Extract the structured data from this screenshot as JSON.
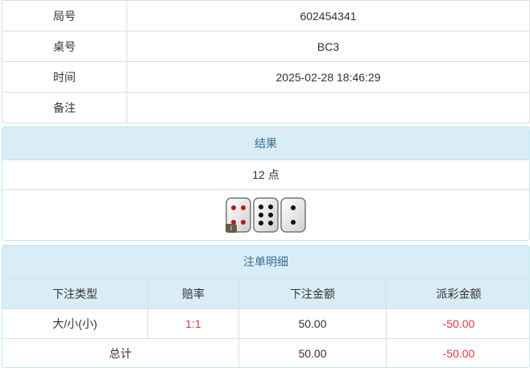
{
  "info": [
    {
      "label": "局号",
      "value": "602454341"
    },
    {
      "label": "桌号",
      "value": "BC3"
    },
    {
      "label": "时间",
      "value": "2025-02-28 18:46:29"
    },
    {
      "label": "备注",
      "value": ""
    }
  ],
  "result": {
    "title": "结果",
    "points": "12 点",
    "dice": [
      4,
      6,
      2
    ],
    "badge": "i"
  },
  "bets": {
    "title": "注单明细",
    "headers": [
      "下注类型",
      "赔率",
      "下注金额",
      "派彩金额"
    ],
    "rows": [
      {
        "type": "大/小(小)",
        "odds": "1:1",
        "amount": "50.00",
        "payout": "-50.00"
      }
    ],
    "total": {
      "label": "总计",
      "amount": "50.00",
      "payout": "-50.00"
    }
  },
  "colors": {
    "header_bg": "#d9edf7",
    "negative": "#e4393c",
    "red_pip": "#c0161c"
  }
}
